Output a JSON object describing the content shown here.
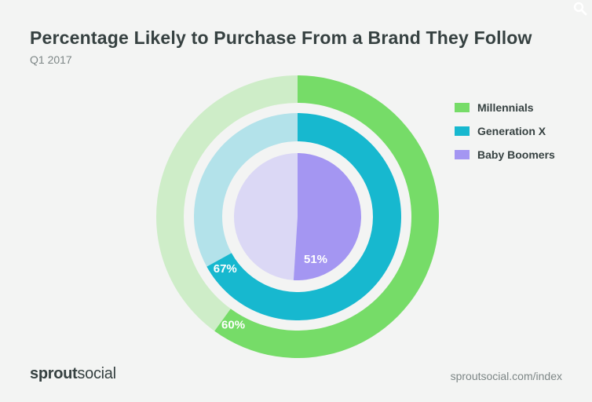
{
  "header": {
    "title": "Percentage Likely to Purchase From a Brand They Follow",
    "subtitle": "Q1 2017"
  },
  "footer": {
    "logo_bold": "sprout",
    "logo_light": "social",
    "url": "sproutsocial.com/index"
  },
  "icons": {
    "zoom": "search-icon"
  },
  "chart_data": {
    "type": "nested-donut",
    "title": "Percentage Likely to Purchase From a Brand They Follow",
    "subtitle": "Q1 2017",
    "legend_position": "right",
    "series": [
      {
        "name": "Millennials",
        "value": 60,
        "label": "60%",
        "color": "#76dc68",
        "track_color": "#ceedc8"
      },
      {
        "name": "Generation X",
        "value": 67,
        "label": "67%",
        "color": "#17b8cf",
        "track_color": "#b3e2ea"
      },
      {
        "name": "Baby Boomers",
        "value": 51,
        "label": "51%",
        "color": "#a496f2",
        "track_color": "#dbd8f5"
      }
    ]
  }
}
